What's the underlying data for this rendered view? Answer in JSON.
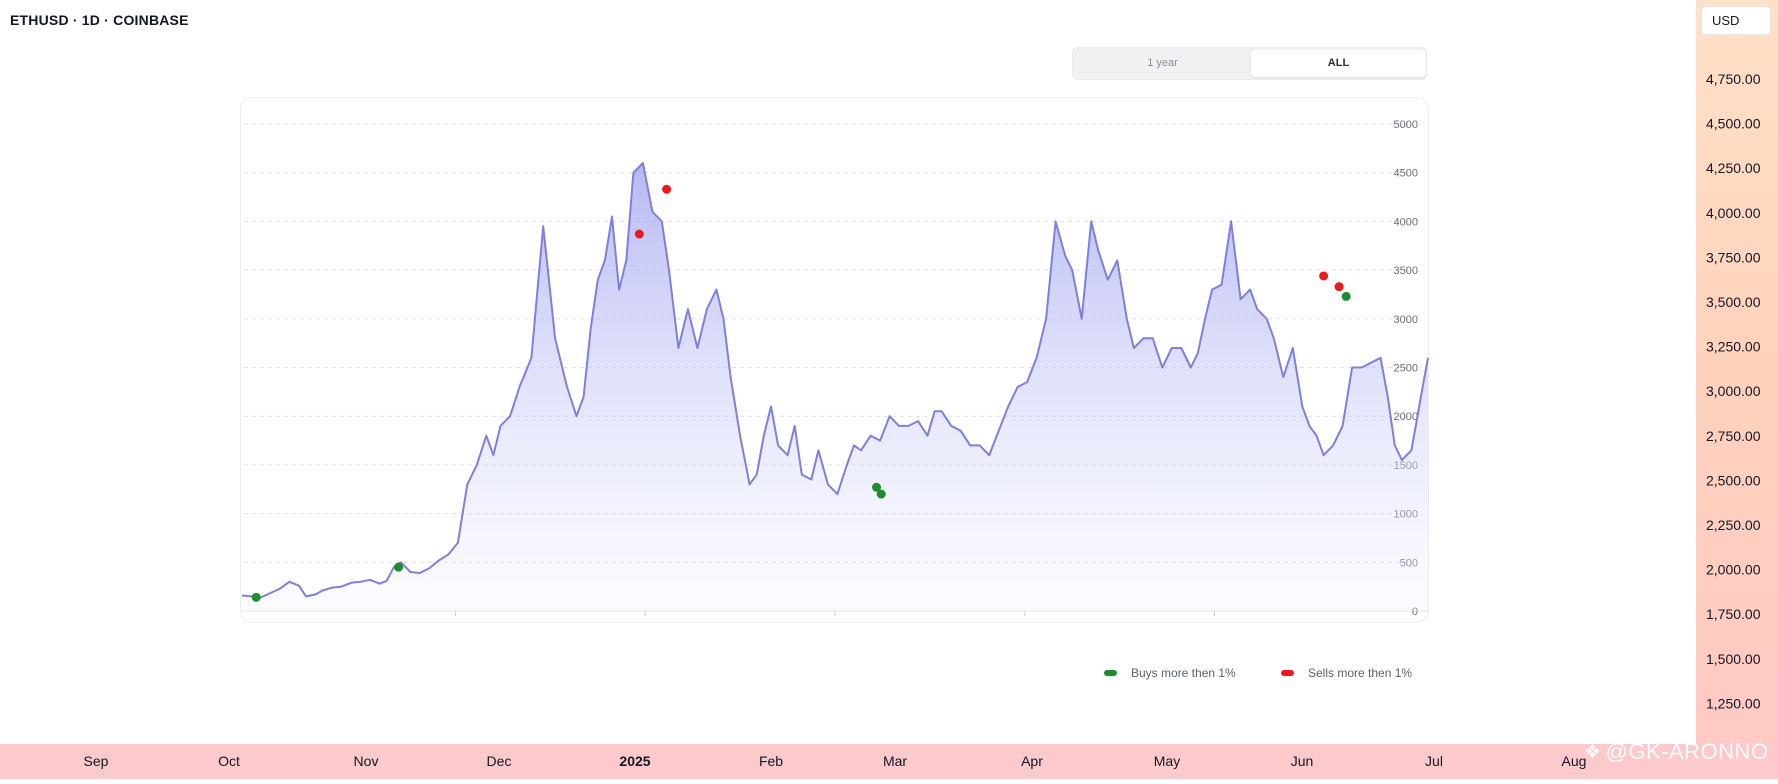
{
  "header": {
    "symbol": "ETHUSD · 1D · COINBASE"
  },
  "currency_button": {
    "label": "USD"
  },
  "range_toggle": {
    "options": [
      "1 year",
      "ALL"
    ],
    "selected": "ALL"
  },
  "price_axis": {
    "labels": [
      "4,750.00",
      "4,500.00",
      "4,250.00",
      "4,000.00",
      "3,750.00",
      "3,500.00",
      "3,250.00",
      "3,000.00",
      "2,750.00",
      "2,500.00",
      "2,250.00",
      "2,000.00",
      "1,750.00",
      "1,500.00",
      "1,250.00"
    ],
    "values": [
      4750,
      4500,
      4250,
      4000,
      3750,
      3500,
      3250,
      3000,
      2750,
      2500,
      2250,
      2000,
      1750,
      1500,
      1250
    ]
  },
  "time_axis": {
    "labels": [
      "Sep",
      "Oct",
      "Nov",
      "Dec",
      "2025",
      "Feb",
      "Mar",
      "Apr",
      "May",
      "Jun",
      "Jul",
      "Aug"
    ],
    "bold": [
      "2025"
    ]
  },
  "legend": {
    "buys_label": "Buys more then 1%",
    "sells_label": "Sells more then 1%"
  },
  "watermark": {
    "text": "@GK-ARONNO"
  },
  "colors": {
    "line": "#7f7fdc",
    "fill_top": "#a9abf0",
    "buy": "#1c8c2e",
    "sell": "#ea1a1a",
    "grid": "#dedee6",
    "tick_text": "#6b6e7a"
  },
  "chart_data": {
    "type": "area",
    "ylim": [
      0,
      5000
    ],
    "yticks": [
      0,
      500,
      1000,
      1500,
      2000,
      2500,
      3000,
      3500,
      4000,
      4500,
      5000
    ],
    "xlim": [
      0,
      1000
    ],
    "grid": true,
    "x": [
      0,
      16,
      32,
      40,
      48,
      54,
      62,
      68,
      76,
      84,
      92,
      100,
      108,
      116,
      122,
      128,
      134,
      142,
      150,
      158,
      166,
      174,
      182,
      190,
      198,
      206,
      212,
      218,
      226,
      234,
      244,
      254,
      264,
      274,
      282,
      288,
      294,
      300,
      306,
      312,
      318,
      324,
      330,
      338,
      346,
      354,
      360,
      368,
      376,
      384,
      392,
      400,
      406,
      412,
      420,
      428,
      434,
      440,
      446,
      452,
      460,
      466,
      472,
      480,
      486,
      494,
      502,
      510,
      516,
      522,
      530,
      538,
      546,
      554,
      562,
      570,
      578,
      584,
      590,
      598,
      606,
      614,
      622,
      630,
      638,
      646,
      654,
      662,
      670,
      678,
      686,
      694,
      700,
      708,
      716,
      722,
      730,
      738,
      746,
      752,
      760,
      768,
      776,
      784,
      792,
      800,
      806,
      812,
      818,
      826,
      834,
      842,
      850,
      856,
      864,
      870,
      878,
      886,
      894,
      900,
      906,
      912,
      920,
      928,
      936,
      944,
      952,
      960,
      966,
      972,
      978,
      986,
      994,
      1000
    ],
    "y": [
      160,
      140,
      230,
      300,
      260,
      150,
      170,
      210,
      240,
      250,
      290,
      300,
      320,
      280,
      310,
      450,
      500,
      400,
      390,
      440,
      520,
      580,
      700,
      1300,
      1500,
      1800,
      1600,
      1900,
      2000,
      2300,
      2600,
      3950,
      2800,
      2300,
      2000,
      2200,
      2900,
      3400,
      3600,
      4050,
      3300,
      3600,
      4500,
      4600,
      4100,
      4000,
      3500,
      2700,
      3100,
      2700,
      3100,
      3300,
      3000,
      2400,
      1800,
      1300,
      1400,
      1800,
      2100,
      1700,
      1600,
      1900,
      1400,
      1350,
      1650,
      1300,
      1200,
      1500,
      1700,
      1650,
      1800,
      1750,
      2000,
      1900,
      1900,
      1950,
      1800,
      2050,
      2050,
      1900,
      1850,
      1700,
      1700,
      1600,
      1850,
      2100,
      2300,
      2350,
      2600,
      3000,
      4000,
      3650,
      3500,
      3000,
      4000,
      3700,
      3400,
      3600,
      3000,
      2700,
      2800,
      2800,
      2500,
      2700,
      2700,
      2500,
      2650,
      3000,
      3300,
      3350,
      4000,
      3200,
      3300,
      3100,
      3000,
      2800,
      2400,
      2700,
      2100,
      1900,
      1800,
      1600,
      1700,
      1900,
      2500,
      2500,
      2550,
      2600,
      2200,
      1700,
      1550,
      1650,
      2200,
      2600
    ],
    "buys": [
      [
        12,
        140
      ],
      [
        132,
        450
      ],
      [
        535,
        1270
      ],
      [
        539,
        1200
      ],
      [
        931,
        3230
      ]
    ],
    "sells": [
      [
        335,
        3870
      ],
      [
        358,
        4330
      ],
      [
        912,
        3440
      ],
      [
        925,
        3330
      ]
    ]
  }
}
